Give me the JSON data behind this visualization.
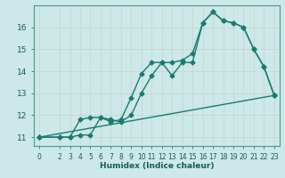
{
  "title": "",
  "xlabel": "Humidex (Indice chaleur)",
  "ylabel": "",
  "bg_color": "#cce8e8",
  "line_color": "#1a7a6e",
  "grid_color": "#b8d8d8",
  "xlim": [
    -0.5,
    23.5
  ],
  "ylim": [
    10.6,
    17.0
  ],
  "xticks": [
    0,
    2,
    3,
    4,
    5,
    6,
    7,
    8,
    9,
    10,
    11,
    12,
    13,
    14,
    15,
    16,
    17,
    18,
    19,
    20,
    21,
    22,
    23
  ],
  "yticks": [
    11,
    12,
    13,
    14,
    15,
    16
  ],
  "line1_x": [
    0,
    2,
    3,
    4,
    5,
    6,
    7,
    8,
    9,
    10,
    11,
    12,
    13,
    14,
    15,
    16,
    17,
    18,
    19,
    20,
    21,
    22,
    23
  ],
  "line1_y": [
    11.0,
    11.0,
    11.0,
    11.8,
    11.9,
    11.9,
    11.7,
    11.8,
    12.8,
    13.9,
    14.4,
    14.4,
    14.4,
    14.5,
    14.8,
    16.2,
    16.7,
    16.3,
    16.2,
    16.0,
    15.0,
    14.2,
    12.9
  ],
  "line2_x": [
    0,
    2,
    3,
    4,
    5,
    6,
    7,
    8,
    9,
    10,
    11,
    12,
    13,
    14,
    15,
    16,
    17,
    18,
    19,
    20,
    21,
    22,
    23
  ],
  "line2_y": [
    11.0,
    11.0,
    11.0,
    11.1,
    11.1,
    11.9,
    11.8,
    11.7,
    12.0,
    13.0,
    13.8,
    14.4,
    13.8,
    14.4,
    14.4,
    16.2,
    16.7,
    16.3,
    16.2,
    16.0,
    15.0,
    14.2,
    12.9
  ],
  "line3_x": [
    0,
    23
  ],
  "line3_y": [
    11.0,
    12.9
  ],
  "marker": "D",
  "markersize": 2.5,
  "linewidth": 1.0
}
